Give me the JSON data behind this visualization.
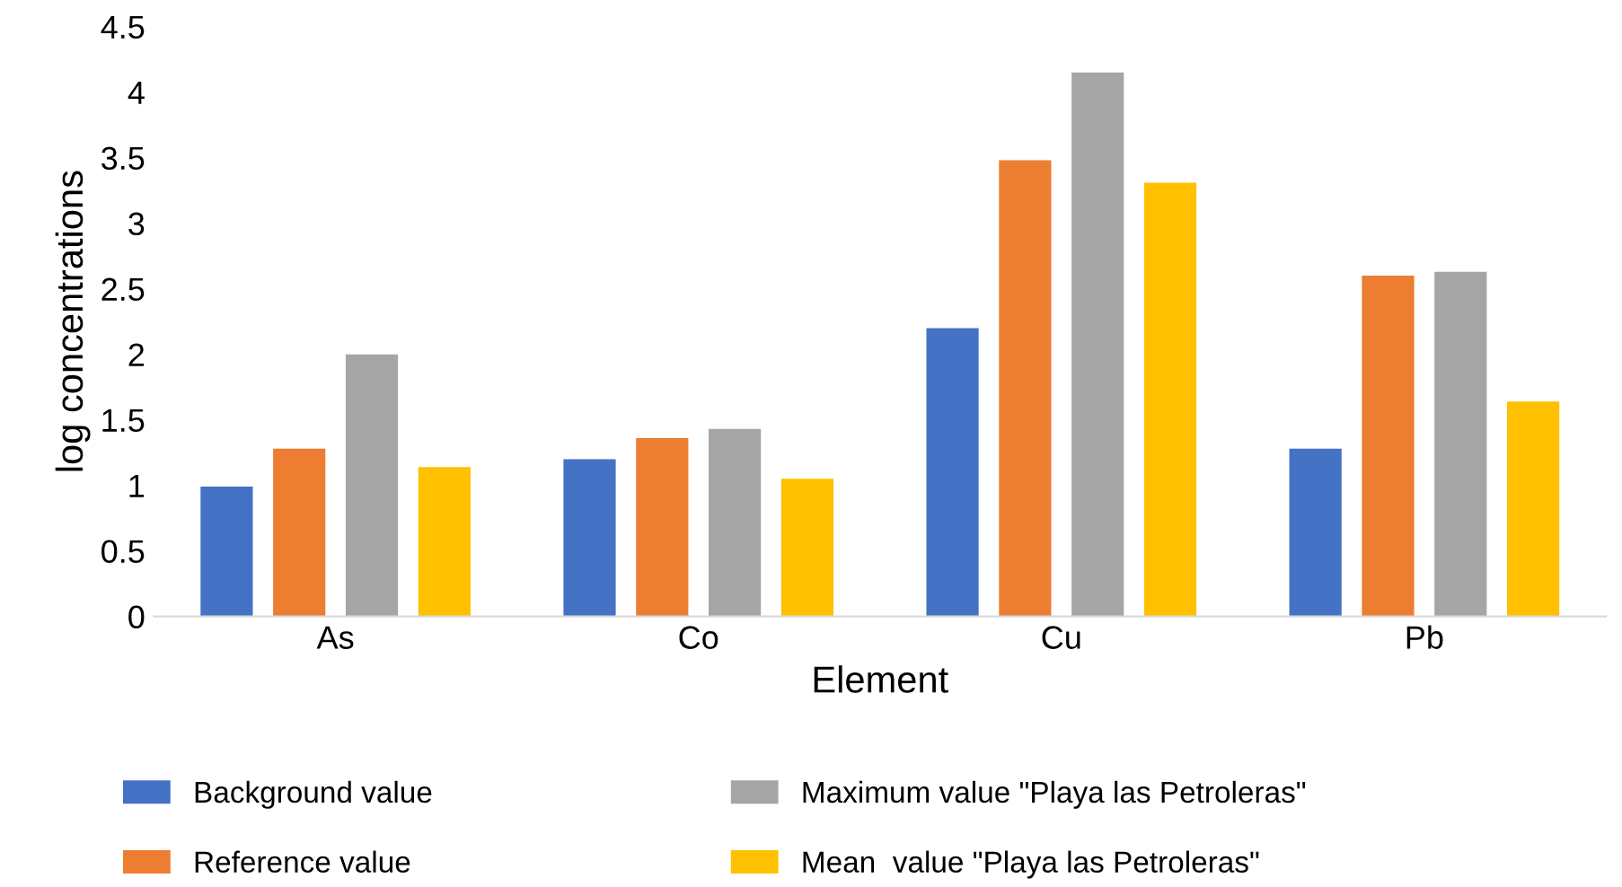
{
  "chart_data": {
    "type": "bar",
    "xlabel": "Element",
    "ylabel": "log concentrations",
    "categories": [
      "As",
      "Co",
      "Cu",
      "Pb"
    ],
    "series": [
      {
        "name": "Background value",
        "color": "#4472c4",
        "values": [
          0.99,
          1.2,
          2.2,
          1.28
        ]
      },
      {
        "name": "Reference value",
        "color": "#ed7d31",
        "values": [
          1.28,
          1.36,
          3.48,
          2.6
        ]
      },
      {
        "name": "Maximum value \"Playa las Petroleras\"",
        "color": "#a5a5a5",
        "values": [
          2.0,
          1.43,
          4.15,
          2.63
        ]
      },
      {
        "name": "Mean  value \"Playa las Petroleras\"",
        "color": "#ffc000",
        "values": [
          1.14,
          1.05,
          3.31,
          1.64
        ]
      }
    ],
    "ylim": [
      0,
      4.5
    ],
    "yticks": [
      0,
      0.5,
      1,
      1.5,
      2,
      2.5,
      3,
      3.5,
      4,
      4.5
    ],
    "grid": false,
    "legend": "bottom"
  }
}
